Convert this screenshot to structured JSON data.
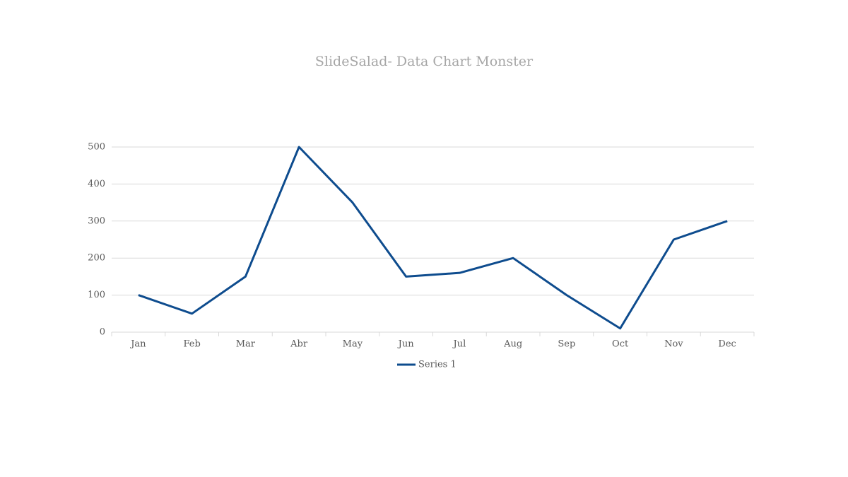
{
  "chart_data": {
    "type": "line",
    "title": "SlideSalad- Data Chart Monster",
    "categories": [
      "Jan",
      "Feb",
      "Mar",
      "Abr",
      "May",
      "Jun",
      "Jul",
      "Aug",
      "Sep",
      "Oct",
      "Nov",
      "Dec"
    ],
    "series": [
      {
        "name": "Series 1",
        "color": "#0e4c8e",
        "values": [
          100,
          50,
          150,
          500,
          350,
          150,
          160,
          200,
          100,
          10,
          250,
          300
        ]
      }
    ],
    "ylim": [
      0,
      500
    ],
    "yticks": [
      0,
      100,
      200,
      300,
      400,
      500
    ],
    "grid": true,
    "legend": "bottom"
  }
}
